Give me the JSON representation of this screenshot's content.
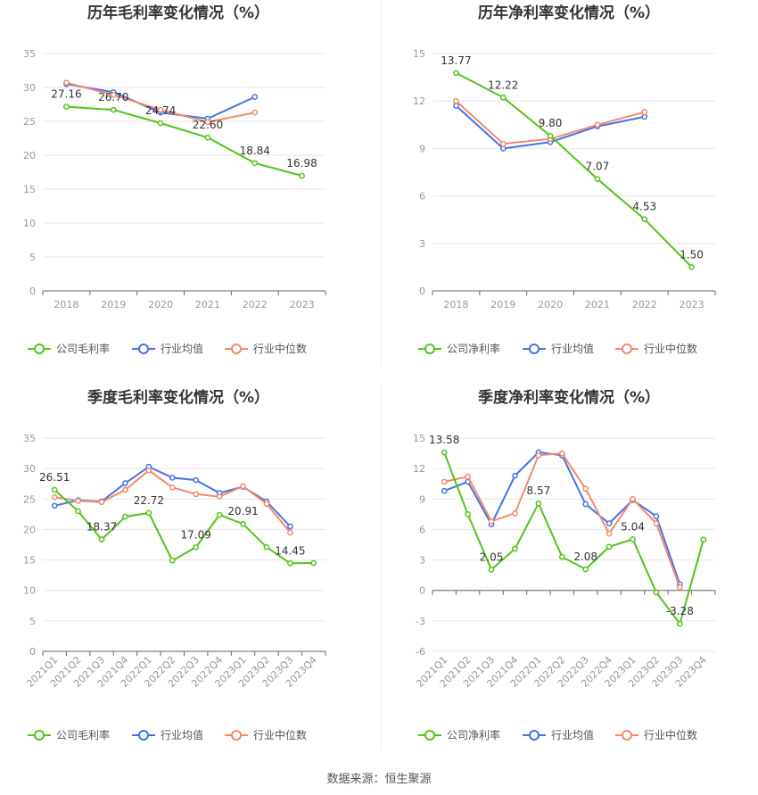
{
  "source_text": "数据来源：恒生聚源",
  "colors": {
    "company": "#52c41a",
    "industry_avg": "#4472e8",
    "industry_median": "#f4896b",
    "grid": "#e6e6e6",
    "axis_text": "#999999",
    "title_text": "#333333"
  },
  "chart_data": [
    {
      "type": "line",
      "title": "历年毛利率变化情况（%）",
      "categories": [
        "2018",
        "2019",
        "2020",
        "2021",
        "2022",
        "2023"
      ],
      "ylim": [
        0,
        35
      ],
      "yticks": [
        0,
        5,
        10,
        15,
        20,
        25,
        30,
        35
      ],
      "grid": true,
      "legend_position": "bottom-center",
      "series": [
        {
          "name": "公司毛利率",
          "role": "company",
          "values": [
            27.16,
            26.7,
            24.74,
            22.6,
            18.84,
            16.98
          ],
          "labels": [
            "27.16",
            "26.70",
            "24.74",
            "22.60",
            "18.84",
            "16.98"
          ]
        },
        {
          "name": "行业均值",
          "role": "industry_avg",
          "values": [
            30.5,
            29.3,
            26.3,
            25.4,
            28.6,
            null
          ]
        },
        {
          "name": "行业中位数",
          "role": "industry_median",
          "values": [
            30.7,
            28.9,
            26.7,
            24.9,
            26.3,
            null
          ]
        }
      ]
    },
    {
      "type": "line",
      "title": "历年净利率变化情况（%）",
      "categories": [
        "2018",
        "2019",
        "2020",
        "2021",
        "2022",
        "2023"
      ],
      "ylim": [
        0,
        15
      ],
      "yticks": [
        0,
        3,
        6,
        9,
        12,
        15
      ],
      "grid": true,
      "legend_position": "bottom-center",
      "series": [
        {
          "name": "公司净利率",
          "role": "company",
          "values": [
            13.77,
            12.22,
            9.8,
            7.07,
            4.53,
            1.5
          ],
          "labels": [
            "13.77",
            "12.22",
            "9.80",
            "7.07",
            "4.53",
            "1.50"
          ]
        },
        {
          "name": "行业均值",
          "role": "industry_avg",
          "values": [
            11.7,
            9.0,
            9.4,
            10.4,
            11.0,
            null
          ]
        },
        {
          "name": "行业中位数",
          "role": "industry_median",
          "values": [
            12.0,
            9.3,
            9.6,
            10.5,
            11.3,
            null
          ]
        }
      ]
    },
    {
      "type": "line",
      "title": "季度毛利率变化情况（%）",
      "categories": [
        "2021Q1",
        "2021Q2",
        "2021Q3",
        "2021Q4",
        "2022Q1",
        "2022Q2",
        "2022Q3",
        "2022Q4",
        "2023Q1",
        "2023Q2",
        "2023Q3",
        "2023Q4"
      ],
      "ylim": [
        0,
        35
      ],
      "yticks": [
        0,
        5,
        10,
        15,
        20,
        25,
        30,
        35
      ],
      "grid": true,
      "legend_position": "bottom-center",
      "series": [
        {
          "name": "公司毛利率",
          "role": "company",
          "values": [
            26.51,
            23.0,
            18.37,
            22.1,
            22.72,
            14.9,
            17.09,
            22.4,
            20.91,
            17.1,
            14.45,
            14.5
          ],
          "labels": [
            "26.51",
            "",
            "18.37",
            "",
            "22.72",
            "",
            "17.09",
            "",
            "20.91",
            "",
            "14.45",
            ""
          ]
        },
        {
          "name": "行业均值",
          "role": "industry_avg",
          "values": [
            23.9,
            24.8,
            24.6,
            27.6,
            30.3,
            28.5,
            28.1,
            26.0,
            27.0,
            24.6,
            20.5,
            null
          ]
        },
        {
          "name": "行业中位数",
          "role": "industry_median",
          "values": [
            25.3,
            24.7,
            24.5,
            26.5,
            29.7,
            26.9,
            25.8,
            25.4,
            27.1,
            24.2,
            19.5,
            null
          ]
        }
      ]
    },
    {
      "type": "line",
      "title": "季度净利率变化情况（%）",
      "categories": [
        "2021Q1",
        "2021Q2",
        "2021Q3",
        "2021Q4",
        "2022Q1",
        "2022Q2",
        "2022Q3",
        "2022Q4",
        "2023Q1",
        "2023Q2",
        "2023Q3",
        "2023Q4"
      ],
      "ylim": [
        -6,
        15
      ],
      "yticks": [
        -6,
        -3,
        0,
        3,
        6,
        9,
        12,
        15
      ],
      "grid": true,
      "legend_position": "bottom-center",
      "series": [
        {
          "name": "公司净利率",
          "role": "company",
          "values": [
            13.58,
            7.5,
            2.05,
            4.1,
            8.57,
            3.3,
            2.08,
            4.3,
            5.04,
            -0.2,
            -3.28,
            5.0
          ],
          "labels": [
            "13.58",
            "",
            "2.05",
            "",
            "8.57",
            "",
            "2.08",
            "",
            "5.04",
            "",
            "-3.28",
            ""
          ]
        },
        {
          "name": "行业均值",
          "role": "industry_avg",
          "values": [
            9.8,
            10.7,
            6.5,
            11.3,
            13.6,
            13.3,
            8.5,
            6.6,
            8.9,
            7.3,
            0.6,
            null
          ]
        },
        {
          "name": "行业中位数",
          "role": "industry_median",
          "values": [
            10.7,
            11.2,
            6.8,
            7.6,
            13.3,
            13.5,
            10.0,
            5.6,
            9.0,
            6.6,
            0.3,
            null
          ]
        }
      ]
    }
  ]
}
